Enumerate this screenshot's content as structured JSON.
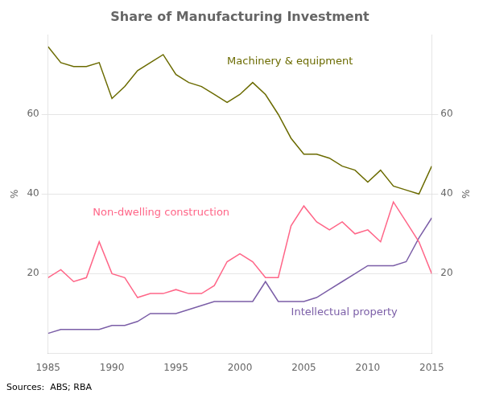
{
  "chart_data": {
    "type": "line",
    "title": "Share of Manufacturing Investment",
    "ylabel": "%",
    "y2label": "%",
    "source": "Sources:  ABS; RBA",
    "x": [
      1985,
      1986,
      1987,
      1988,
      1989,
      1990,
      1991,
      1992,
      1993,
      1994,
      1995,
      1996,
      1997,
      1998,
      1999,
      2000,
      2001,
      2002,
      2003,
      2004,
      2005,
      2006,
      2007,
      2008,
      2009,
      2010,
      2011,
      2012,
      2013,
      2014,
      2015
    ],
    "series": [
      {
        "name": "Machinery & equipment",
        "color": "#6b6b00",
        "values": [
          77,
          73,
          72,
          72,
          73,
          64,
          67,
          71,
          73,
          75,
          70,
          68,
          67,
          65,
          63,
          65,
          68,
          65,
          60,
          54,
          50,
          50,
          49,
          47,
          46,
          43,
          46,
          42,
          41,
          40,
          47
        ]
      },
      {
        "name": "Non-dwelling construction",
        "color": "#ff6688",
        "values": [
          19,
          21,
          18,
          19,
          28,
          20,
          19,
          14,
          15,
          15,
          16,
          15,
          15,
          17,
          23,
          25,
          23,
          19,
          19,
          32,
          37,
          33,
          31,
          33,
          30,
          31,
          28,
          38,
          33,
          28,
          20
        ]
      },
      {
        "name": "Intellectual property",
        "color": "#7b5ea7",
        "values": [
          5,
          6,
          6,
          6,
          6,
          7,
          7,
          8,
          10,
          10,
          10,
          11,
          12,
          13,
          13,
          13,
          13,
          18,
          13,
          13,
          13,
          14,
          16,
          18,
          20,
          22,
          22,
          22,
          23,
          29,
          34
        ]
      }
    ],
    "annotations": [
      {
        "text": "Machinery & equipment",
        "x": 1999,
        "y": 72,
        "color": "#6b6b00"
      },
      {
        "text": "Non-dwelling construction",
        "x": 1988.5,
        "y": 34,
        "color": "#ff6688"
      },
      {
        "text": "Intellectual property",
        "x": 2004,
        "y": 9,
        "color": "#7b5ea7"
      }
    ],
    "xlim": [
      1985,
      2015
    ],
    "xticks": [
      1985,
      1990,
      1995,
      2000,
      2005,
      2010,
      2015
    ],
    "ylim": [
      0,
      80
    ],
    "yticks": [
      20,
      40,
      60
    ],
    "y2lim": [
      0,
      80
    ],
    "y2ticks": [
      20,
      40,
      60
    ],
    "grid": "y",
    "legend": false
  }
}
